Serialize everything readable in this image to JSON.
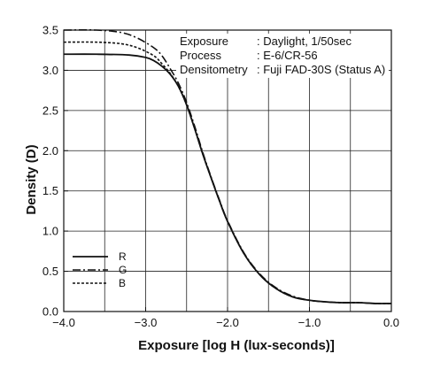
{
  "chart_data": {
    "type": "line",
    "xlabel": "Exposure [log H (lux-seconds)]",
    "ylabel": "Density (D)",
    "xlim": [
      -4.0,
      0.0
    ],
    "ylim": [
      0.0,
      3.5
    ],
    "xticks": [
      "−4.0",
      "−3.0",
      "−2.0",
      "−1.0",
      "0.0"
    ],
    "xtick_values": [
      -4.0,
      -3.0,
      -2.0,
      -1.0,
      0.0
    ],
    "yticks": [
      "0.0",
      "0.5",
      "1.0",
      "1.5",
      "2.0",
      "2.5",
      "3.0",
      "3.5"
    ],
    "ytick_values": [
      0.0,
      0.5,
      1.0,
      1.5,
      2.0,
      2.5,
      3.0,
      3.5
    ],
    "grid": true,
    "legend_placement": "lower-left",
    "annotations": [
      {
        "label": "Exposure",
        "value": ": Daylight, 1/50sec"
      },
      {
        "label": "Process",
        "value": ": E-6/CR-56"
      },
      {
        "label": "Densitometry",
        "value": ": Fuji FAD-30S (Status A)"
      }
    ],
    "series": [
      {
        "name": "R",
        "dash": "solid",
        "points": [
          [
            -4.0,
            3.2
          ],
          [
            -3.6,
            3.2
          ],
          [
            -3.2,
            3.19
          ],
          [
            -3.0,
            3.16
          ],
          [
            -2.9,
            3.12
          ],
          [
            -2.8,
            3.05
          ],
          [
            -2.7,
            2.95
          ],
          [
            -2.6,
            2.8
          ],
          [
            -2.5,
            2.57
          ],
          [
            -2.4,
            2.27
          ],
          [
            -2.3,
            1.95
          ],
          [
            -2.2,
            1.66
          ],
          [
            -2.1,
            1.38
          ],
          [
            -2.0,
            1.12
          ],
          [
            -1.8,
            0.72
          ],
          [
            -1.6,
            0.45
          ],
          [
            -1.4,
            0.28
          ],
          [
            -1.2,
            0.18
          ],
          [
            -1.0,
            0.14
          ],
          [
            -0.8,
            0.12
          ],
          [
            -0.6,
            0.11
          ],
          [
            -0.4,
            0.11
          ],
          [
            -0.2,
            0.1
          ],
          [
            0.0,
            0.1
          ]
        ]
      },
      {
        "name": "G",
        "dash": "dash-dot",
        "points": [
          [
            -4.0,
            3.5
          ],
          [
            -3.6,
            3.5
          ],
          [
            -3.3,
            3.47
          ],
          [
            -3.1,
            3.4
          ],
          [
            -2.9,
            3.28
          ],
          [
            -2.8,
            3.18
          ],
          [
            -2.7,
            3.02
          ],
          [
            -2.6,
            2.84
          ],
          [
            -2.5,
            2.6
          ],
          [
            -2.4,
            2.3
          ],
          [
            -2.3,
            1.97
          ],
          [
            -2.2,
            1.67
          ],
          [
            -2.1,
            1.39
          ],
          [
            -2.0,
            1.13
          ],
          [
            -1.8,
            0.73
          ],
          [
            -1.6,
            0.46
          ],
          [
            -1.4,
            0.29
          ],
          [
            -1.2,
            0.19
          ],
          [
            -1.0,
            0.14
          ],
          [
            -0.8,
            0.12
          ],
          [
            -0.6,
            0.11
          ],
          [
            -0.4,
            0.11
          ],
          [
            -0.2,
            0.1
          ],
          [
            0.0,
            0.1
          ]
        ]
      },
      {
        "name": "B",
        "dash": "dotted",
        "points": [
          [
            -4.0,
            3.35
          ],
          [
            -3.6,
            3.35
          ],
          [
            -3.3,
            3.33
          ],
          [
            -3.1,
            3.28
          ],
          [
            -2.9,
            3.18
          ],
          [
            -2.8,
            3.08
          ],
          [
            -2.7,
            2.96
          ],
          [
            -2.6,
            2.8
          ],
          [
            -2.5,
            2.57
          ],
          [
            -2.4,
            2.27
          ],
          [
            -2.3,
            1.95
          ],
          [
            -2.2,
            1.66
          ],
          [
            -2.1,
            1.38
          ],
          [
            -2.0,
            1.12
          ],
          [
            -1.8,
            0.72
          ],
          [
            -1.6,
            0.45
          ],
          [
            -1.4,
            0.28
          ],
          [
            -1.2,
            0.18
          ],
          [
            -1.0,
            0.14
          ],
          [
            -0.8,
            0.12
          ],
          [
            -0.6,
            0.11
          ],
          [
            -0.4,
            0.11
          ],
          [
            -0.2,
            0.1
          ],
          [
            0.0,
            0.1
          ]
        ]
      }
    ]
  }
}
